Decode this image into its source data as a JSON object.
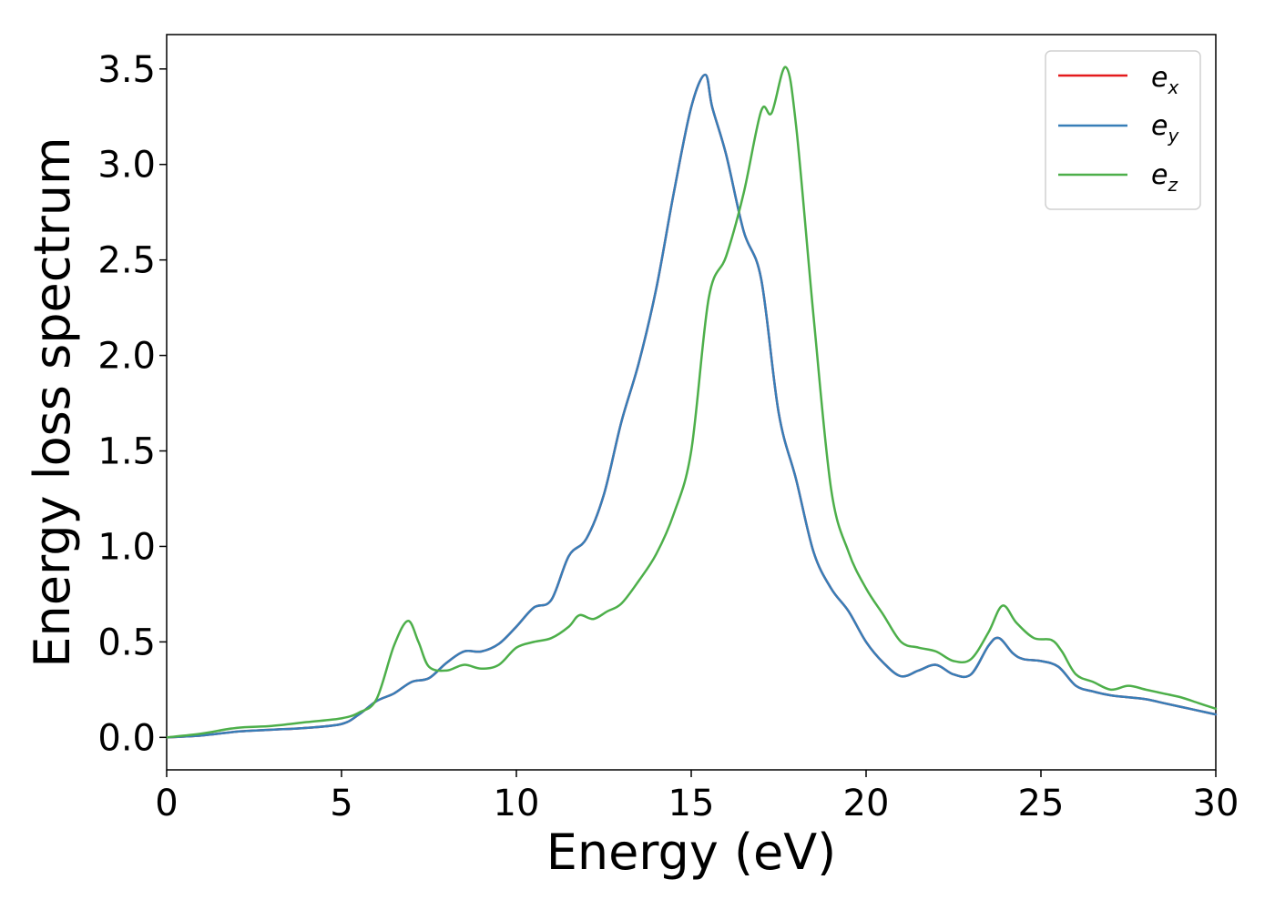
{
  "chart_data": {
    "type": "line",
    "title": "",
    "xlabel": "Energy (eV)",
    "ylabel": "Energy loss spectrum",
    "xlim": [
      0,
      30
    ],
    "ylim": [
      -0.17,
      3.68
    ],
    "xticks": [
      "0",
      "5",
      "10",
      "15",
      "20",
      "25",
      "30"
    ],
    "yticks": [
      "0.0",
      "0.5",
      "1.0",
      "1.5",
      "2.0",
      "2.5",
      "3.0",
      "3.5"
    ],
    "grid": false,
    "legend_position": "top-right",
    "legend": [
      {
        "base": "e",
        "sub": "x"
      },
      {
        "base": "e",
        "sub": "y"
      },
      {
        "base": "e",
        "sub": "z"
      }
    ],
    "colors": {
      "ex": "#e41a1c",
      "ey": "#377eb8",
      "ez": "#4daf4a"
    },
    "series": [
      {
        "name": "e_x",
        "color": "#e41a1c",
        "x": [
          0,
          1,
          2,
          3,
          4,
          5,
          5.5,
          6,
          6.5,
          7,
          7.5,
          8,
          8.5,
          9,
          9.5,
          10,
          10.5,
          11,
          11.5,
          12,
          12.5,
          13,
          13.5,
          14,
          14.5,
          15,
          15.4,
          15.6,
          16,
          16.5,
          17,
          17.5,
          18,
          18.5,
          19,
          19.5,
          20,
          20.5,
          21,
          21.5,
          22,
          22.5,
          23,
          23.5,
          23.8,
          24.2,
          24.5,
          25,
          25.5,
          26,
          26.5,
          27,
          27.5,
          28,
          28.5,
          29,
          29.5,
          30
        ],
        "y": [
          0.0,
          0.01,
          0.03,
          0.04,
          0.05,
          0.07,
          0.12,
          0.19,
          0.23,
          0.29,
          0.31,
          0.39,
          0.45,
          0.45,
          0.49,
          0.58,
          0.68,
          0.72,
          0.95,
          1.04,
          1.27,
          1.65,
          1.96,
          2.35,
          2.85,
          3.3,
          3.47,
          3.3,
          3.05,
          2.65,
          2.4,
          1.7,
          1.35,
          0.97,
          0.78,
          0.66,
          0.5,
          0.39,
          0.32,
          0.35,
          0.38,
          0.33,
          0.33,
          0.48,
          0.52,
          0.44,
          0.41,
          0.4,
          0.37,
          0.27,
          0.24,
          0.22,
          0.21,
          0.2,
          0.18,
          0.16,
          0.14,
          0.12
        ]
      },
      {
        "name": "e_y",
        "color": "#377eb8",
        "x": [
          0,
          1,
          2,
          3,
          4,
          5,
          5.5,
          6,
          6.5,
          7,
          7.5,
          8,
          8.5,
          9,
          9.5,
          10,
          10.5,
          11,
          11.5,
          12,
          12.5,
          13,
          13.5,
          14,
          14.5,
          15,
          15.4,
          15.6,
          16,
          16.5,
          17,
          17.5,
          18,
          18.5,
          19,
          19.5,
          20,
          20.5,
          21,
          21.5,
          22,
          22.5,
          23,
          23.5,
          23.8,
          24.2,
          24.5,
          25,
          25.5,
          26,
          26.5,
          27,
          27.5,
          28,
          28.5,
          29,
          29.5,
          30
        ],
        "y": [
          0.0,
          0.01,
          0.03,
          0.04,
          0.05,
          0.07,
          0.12,
          0.19,
          0.23,
          0.29,
          0.31,
          0.39,
          0.45,
          0.45,
          0.49,
          0.58,
          0.68,
          0.72,
          0.95,
          1.04,
          1.27,
          1.65,
          1.96,
          2.35,
          2.85,
          3.3,
          3.47,
          3.3,
          3.05,
          2.65,
          2.4,
          1.7,
          1.35,
          0.97,
          0.78,
          0.66,
          0.5,
          0.39,
          0.32,
          0.35,
          0.38,
          0.33,
          0.33,
          0.48,
          0.52,
          0.44,
          0.41,
          0.4,
          0.37,
          0.27,
          0.24,
          0.22,
          0.21,
          0.2,
          0.18,
          0.16,
          0.14,
          0.12
        ]
      },
      {
        "name": "e_z",
        "color": "#4daf4a",
        "x": [
          0,
          1,
          2,
          3,
          4,
          5,
          5.5,
          6,
          6.5,
          6.9,
          7.2,
          7.5,
          8,
          8.5,
          9,
          9.5,
          10,
          10.5,
          11,
          11.5,
          11.8,
          12.2,
          12.6,
          13,
          13.5,
          14,
          14.5,
          15,
          15.5,
          16,
          16.5,
          17,
          17.3,
          17.7,
          18,
          18.5,
          19,
          19.5,
          20,
          20.5,
          21,
          21.5,
          22,
          22.5,
          23,
          23.5,
          23.9,
          24.3,
          24.8,
          25.3,
          25.6,
          26,
          26.5,
          27,
          27.5,
          28,
          28.5,
          29,
          29.5,
          30
        ],
        "y": [
          0.0,
          0.02,
          0.05,
          0.06,
          0.08,
          0.1,
          0.13,
          0.2,
          0.48,
          0.61,
          0.5,
          0.37,
          0.35,
          0.38,
          0.36,
          0.38,
          0.47,
          0.5,
          0.52,
          0.58,
          0.64,
          0.62,
          0.66,
          0.7,
          0.82,
          0.96,
          1.17,
          1.5,
          2.3,
          2.52,
          2.85,
          3.28,
          3.27,
          3.51,
          3.2,
          2.2,
          1.3,
          0.97,
          0.78,
          0.64,
          0.5,
          0.47,
          0.45,
          0.4,
          0.41,
          0.55,
          0.69,
          0.6,
          0.52,
          0.51,
          0.45,
          0.33,
          0.29,
          0.25,
          0.27,
          0.25,
          0.23,
          0.21,
          0.18,
          0.15
        ]
      }
    ]
  }
}
